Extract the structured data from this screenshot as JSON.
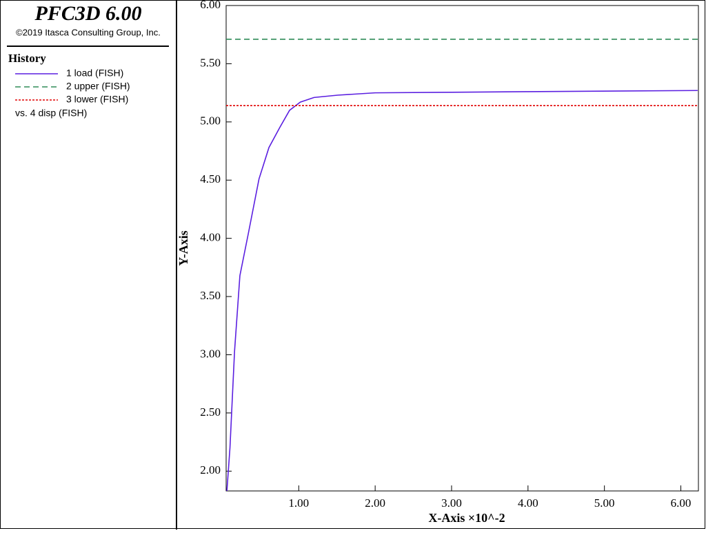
{
  "header": {
    "title": "PFC3D 6.00",
    "copyright": "©2019 Itasca Consulting Group, Inc."
  },
  "chart_data": {
    "type": "line",
    "legend_title": "History",
    "legend_note": "vs. 4 disp (FISH)",
    "x_label": "X-Axis ×10^-2",
    "y_label": "Y-Axis",
    "xlim": [
      0.05,
      6.23
    ],
    "ylim": [
      1.83,
      6.0
    ],
    "xticks": [
      {
        "value": 1,
        "label": "1.00"
      },
      {
        "value": 2,
        "label": "2.00"
      },
      {
        "value": 3,
        "label": "3.00"
      },
      {
        "value": 4,
        "label": "4.00"
      },
      {
        "value": 5,
        "label": "5.00"
      },
      {
        "value": 6,
        "label": "6.00"
      }
    ],
    "yticks": [
      {
        "value": 2,
        "label": "2.00"
      },
      {
        "value": 2.5,
        "label": "2.50"
      },
      {
        "value": 3,
        "label": "3.00"
      },
      {
        "value": 3.5,
        "label": "3.50"
      },
      {
        "value": 4,
        "label": "4.00"
      },
      {
        "value": 4.5,
        "label": "4.50"
      },
      {
        "value": 5,
        "label": "5.00"
      },
      {
        "value": 5.5,
        "label": "5.50"
      },
      {
        "value": 6,
        "label": "6.00"
      }
    ],
    "series": [
      {
        "name": "1 load (FISH)",
        "color": "#5a1ee0",
        "dash": "none",
        "x": [
          0.06,
          0.1,
          0.16,
          0.23,
          0.34,
          0.48,
          0.61,
          0.75,
          0.88,
          1.02,
          1.2,
          1.51,
          2.0,
          3.0,
          4.0,
          6.22
        ],
        "values": [
          1.83,
          2.2,
          3.03,
          3.68,
          4.04,
          4.51,
          4.78,
          4.95,
          5.1,
          5.17,
          5.21,
          5.23,
          5.25,
          5.255,
          5.26,
          5.27
        ]
      },
      {
        "name": "2 upper (FISH)",
        "color": "#2e8b57",
        "dash": "8 5",
        "x": [
          0.05,
          6.23
        ],
        "values": [
          5.71,
          5.71
        ]
      },
      {
        "name": "3 lower (FISH)",
        "color": "#e00000",
        "dash": "3 2",
        "x": [
          0.05,
          6.23
        ],
        "values": [
          5.14,
          5.14
        ]
      }
    ]
  }
}
